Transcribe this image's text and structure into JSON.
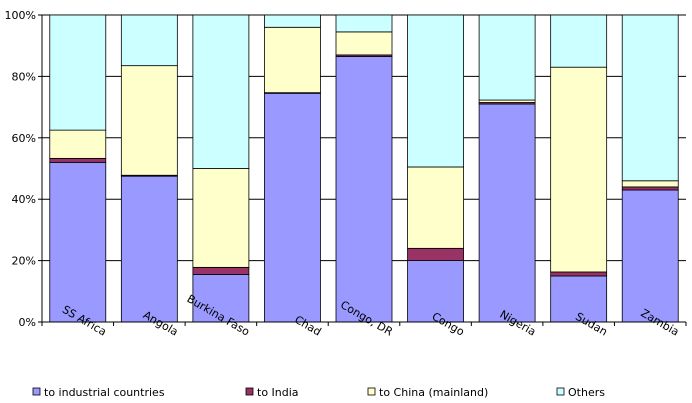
{
  "chart_data": {
    "type": "bar",
    "stacked": true,
    "percent": true,
    "categories": [
      "SS Africa",
      "Angola",
      "Burkina Faso",
      "Chad",
      "Congo, DR",
      "Congo",
      "Nigeria",
      "Sudan",
      "Zambia"
    ],
    "series": [
      {
        "name": "to industrial countries",
        "color": "#9999ff",
        "values": [
          52,
          47.5,
          15.5,
          74.5,
          86.5,
          20,
          71,
          15,
          43
        ]
      },
      {
        "name": "to India",
        "color": "#993366",
        "values": [
          1.3,
          0.3,
          2.3,
          0.2,
          0.5,
          4,
          0.5,
          1.3,
          1
        ]
      },
      {
        "name": "to China (mainland)",
        "color": "#ffffcc",
        "values": [
          9.2,
          35.7,
          32.2,
          21.3,
          7.5,
          26.5,
          0.8,
          66.7,
          2
        ]
      },
      {
        "name": "Others",
        "color": "#ccffff",
        "values": [
          37.5,
          16.5,
          50,
          4,
          5.5,
          49.5,
          27.7,
          17,
          54
        ]
      }
    ],
    "yticks": [
      "0%",
      "20%",
      "40%",
      "60%",
      "80%",
      "100%"
    ],
    "ylim": [
      0,
      100
    ],
    "grid": true,
    "legend": "bottom"
  }
}
